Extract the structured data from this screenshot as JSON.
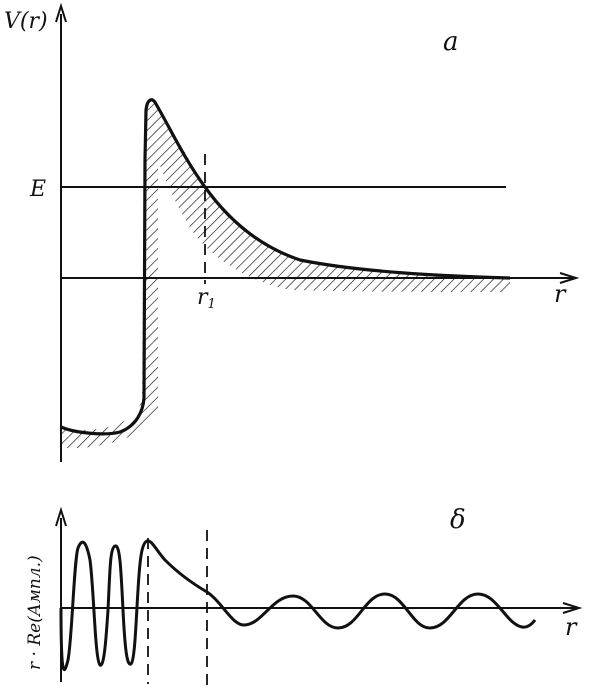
{
  "panel_a": {
    "letter": "a",
    "y_axis_label": "V(r)",
    "energy_label": "E",
    "turning_point_label": "r",
    "turning_point_subscript": "1",
    "x_axis_label": "r"
  },
  "panel_b": {
    "letter": "δ",
    "y_axis_label": "r · Re(Ампл.)",
    "x_axis_label": "r"
  },
  "colors": {
    "ink": "#111111",
    "background": "#ffffff"
  }
}
